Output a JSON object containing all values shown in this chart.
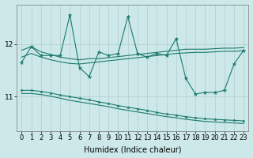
{
  "xlabel": "Humidex (Indice chaleur)",
  "x_values": [
    0,
    1,
    2,
    3,
    4,
    5,
    6,
    7,
    8,
    9,
    10,
    11,
    12,
    13,
    14,
    15,
    16,
    17,
    18,
    19,
    20,
    21,
    22,
    23
  ],
  "line_volatile": [
    11.65,
    11.95,
    11.78,
    11.78,
    11.78,
    12.55,
    11.55,
    11.38,
    11.85,
    11.78,
    11.82,
    12.52,
    11.82,
    11.75,
    11.82,
    11.78,
    12.1,
    11.35,
    11.05,
    11.08,
    11.08,
    11.12,
    11.62,
    11.88
  ],
  "line_upper1": [
    11.88,
    11.95,
    11.85,
    11.8,
    11.75,
    11.72,
    11.7,
    11.72,
    11.72,
    11.74,
    11.76,
    11.78,
    11.8,
    11.82,
    11.84,
    11.86,
    11.88,
    11.9,
    11.9,
    11.9,
    11.91,
    11.92,
    11.92,
    11.93
  ],
  "line_upper2": [
    11.75,
    11.82,
    11.75,
    11.7,
    11.66,
    11.63,
    11.62,
    11.64,
    11.66,
    11.68,
    11.7,
    11.72,
    11.74,
    11.76,
    11.78,
    11.8,
    11.82,
    11.83,
    11.84,
    11.84,
    11.85,
    11.86,
    11.86,
    11.87
  ],
  "line_lower1": [
    11.12,
    11.12,
    11.1,
    11.07,
    11.03,
    11.0,
    10.97,
    10.94,
    10.9,
    10.87,
    10.83,
    10.8,
    10.77,
    10.74,
    10.7,
    10.67,
    10.65,
    10.62,
    10.6,
    10.58,
    10.57,
    10.56,
    10.55,
    10.54
  ],
  "line_lower2": [
    11.06,
    11.06,
    11.04,
    11.01,
    10.97,
    10.93,
    10.9,
    10.87,
    10.84,
    10.81,
    10.77,
    10.74,
    10.71,
    10.68,
    10.65,
    10.62,
    10.6,
    10.57,
    10.55,
    10.53,
    10.52,
    10.51,
    10.5,
    10.49
  ],
  "line_color": "#1a7a6e",
  "bg_color": "#cde8e8",
  "grid_color": "#b0cccc",
  "ylim": [
    10.35,
    12.75
  ],
  "yticks": [
    11,
    12
  ],
  "axis_fontsize": 7,
  "tick_fontsize": 6.5
}
